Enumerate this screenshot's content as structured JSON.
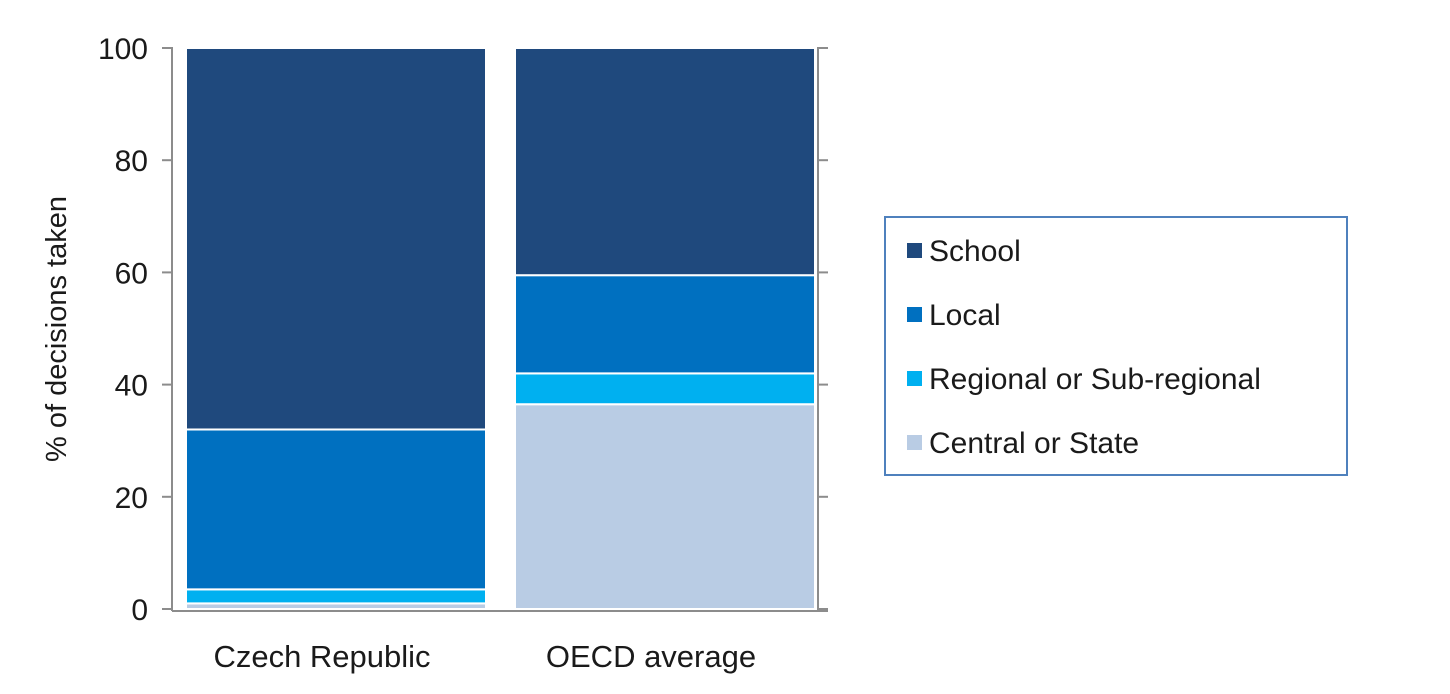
{
  "chart_data": {
    "type": "bar",
    "stacked": true,
    "title": "",
    "xlabel": "",
    "ylabel": "% of decisions taken",
    "ylim": [
      0,
      100
    ],
    "yticks": [
      0,
      20,
      40,
      60,
      80,
      100
    ],
    "categories": [
      "Czech Republic",
      "OECD average"
    ],
    "series": [
      {
        "name": "Central or State",
        "color": "#b9cce4",
        "values": [
          1,
          36.5
        ]
      },
      {
        "name": "Regional or Sub-regional",
        "color": "#00b0f0",
        "values": [
          2.5,
          5.5
        ]
      },
      {
        "name": "Local",
        "color": "#0070c0",
        "values": [
          28.5,
          17.5
        ]
      },
      {
        "name": "School",
        "color": "#1f497d",
        "values": [
          68,
          40.5
        ]
      }
    ],
    "legend": {
      "position": "right",
      "order": [
        "School",
        "Local",
        "Regional or Sub-regional",
        "Central or State"
      ],
      "border_color": "#4f81bd"
    },
    "grid": false
  }
}
